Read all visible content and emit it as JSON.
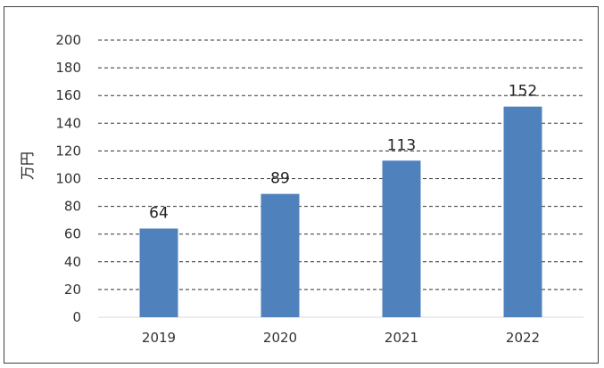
{
  "chart_data": {
    "type": "bar",
    "categories": [
      "2019",
      "2020",
      "2021",
      "2022"
    ],
    "values": [
      64,
      89,
      113,
      152
    ],
    "data_labels": [
      "64",
      "89",
      "113",
      "152"
    ],
    "title": "",
    "xlabel": "",
    "ylabel": "万円",
    "ylim": [
      0,
      200
    ],
    "yticks": [
      "0",
      "20",
      "40",
      "60",
      "80",
      "100",
      "120",
      "140",
      "160",
      "180",
      "200"
    ],
    "grid": true,
    "grid_style": "dashed",
    "legend": "none",
    "colors": {
      "bar": "#4F81BD",
      "grid": "#333333",
      "frame": "#404040"
    }
  }
}
